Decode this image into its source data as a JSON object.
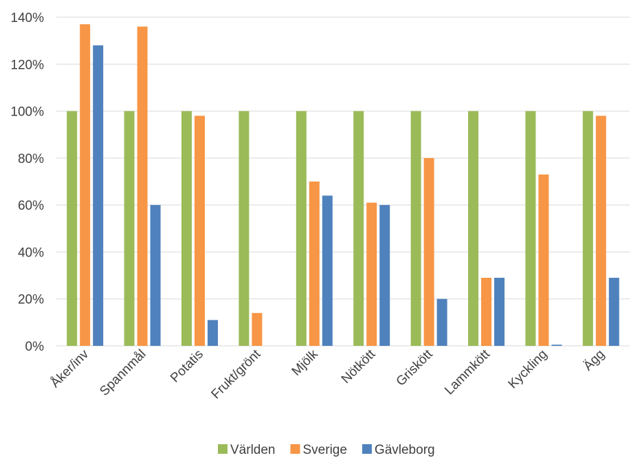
{
  "chart_data": {
    "type": "bar",
    "title": "",
    "xlabel": "",
    "ylabel": "",
    "ylim": [
      0,
      140
    ],
    "yticks": [
      "0%",
      "20%",
      "40%",
      "60%",
      "80%",
      "100%",
      "120%",
      "140%"
    ],
    "grid": true,
    "legend_position": "bottom",
    "categories": [
      "Åker/inv",
      "Spannmål",
      "Potatis",
      "Frukt/grönt",
      "Mjölk",
      "Nötkött",
      "Griskött",
      "Lammkött",
      "Kyckling",
      "Ägg"
    ],
    "series": [
      {
        "name": "Världen",
        "color": "#9bbb59",
        "values": [
          100,
          100,
          100,
          100,
          100,
          100,
          100,
          100,
          100,
          100
        ]
      },
      {
        "name": "Sverige",
        "color": "#f79646",
        "values": [
          137,
          136,
          98,
          14,
          70,
          61,
          80,
          29,
          73,
          98
        ]
      },
      {
        "name": "Gävleborg",
        "color": "#4f81bd",
        "values": [
          128,
          60,
          11,
          0,
          64,
          60,
          20,
          29,
          0.5,
          29
        ]
      }
    ]
  }
}
